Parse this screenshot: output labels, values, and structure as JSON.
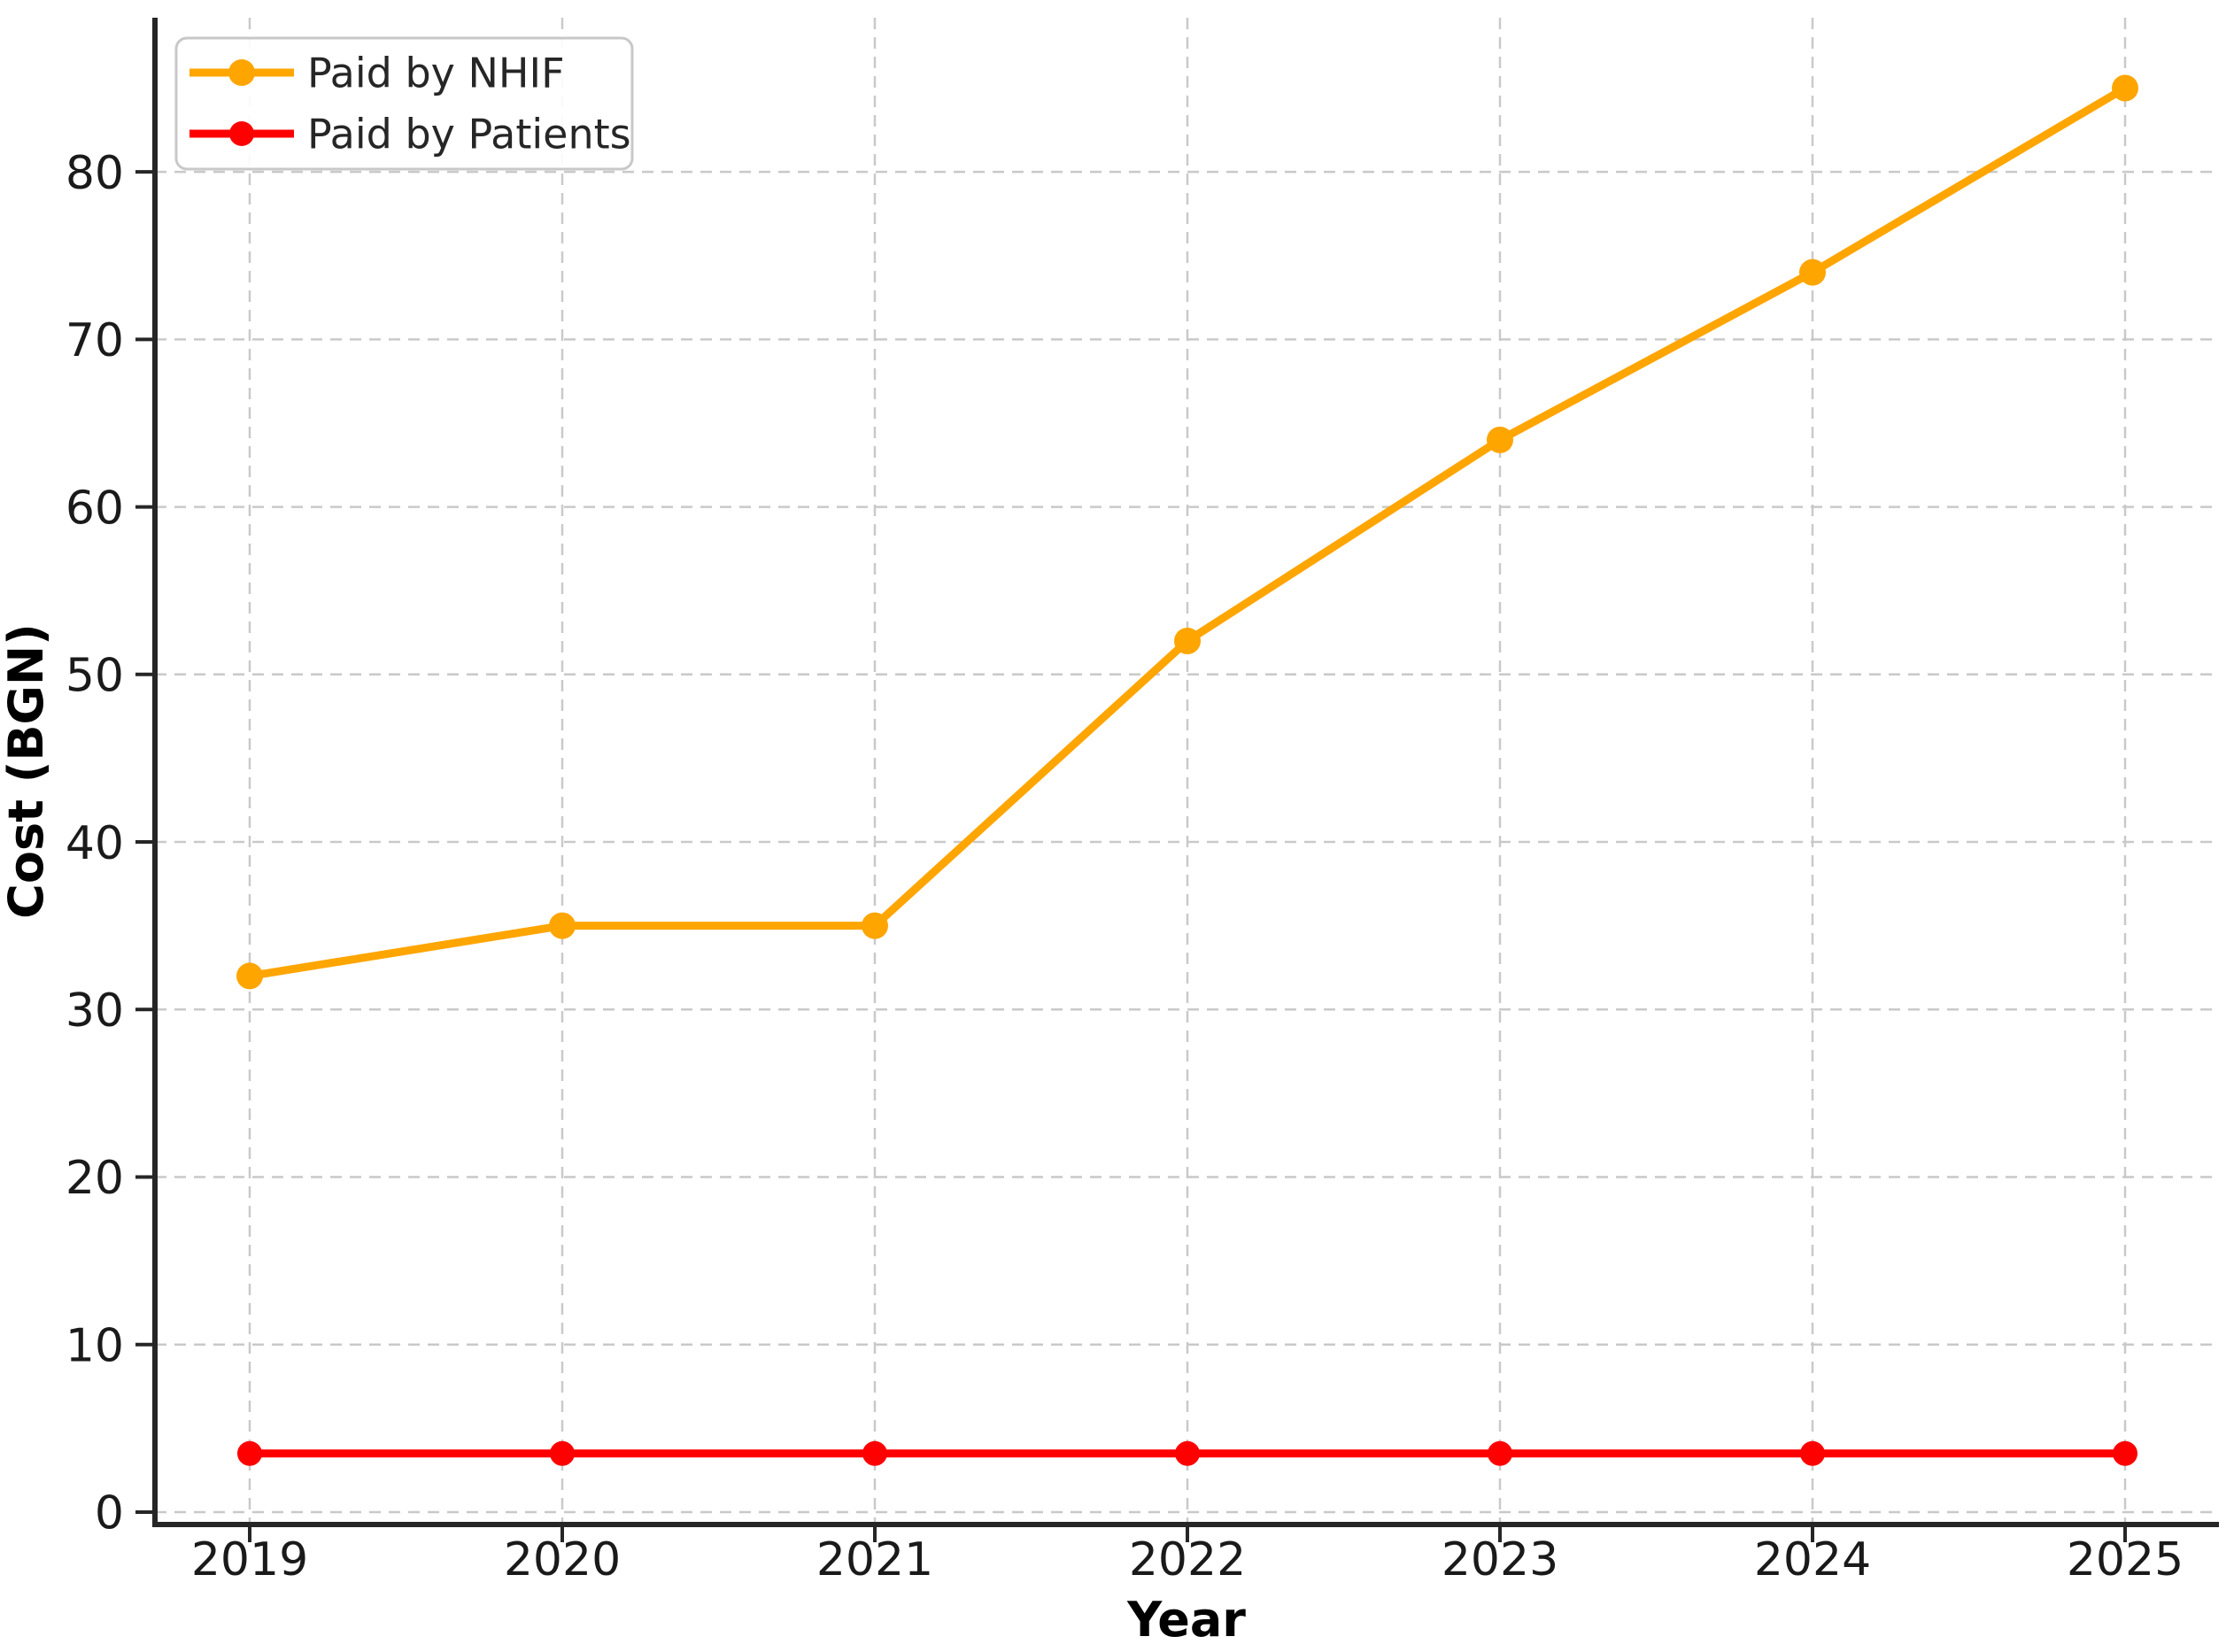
{
  "chart_data": {
    "type": "line",
    "title": "",
    "x": [
      2019,
      2020,
      2021,
      2022,
      2023,
      2024,
      2025
    ],
    "x_tick_labels": [
      "2019",
      "2020",
      "2021",
      "2022",
      "2023",
      "2024",
      "2025"
    ],
    "series": [
      {
        "name": "Paid by NHIF",
        "color": "#FFA500",
        "values": [
          32,
          35,
          35,
          52,
          64,
          74,
          85
        ],
        "marker": "o",
        "marker_radius": 15
      },
      {
        "name": "Paid by Patients",
        "color": "#FF0000",
        "values": [
          3.5,
          3.5,
          3.5,
          3.5,
          3.5,
          3.5,
          3.5
        ],
        "marker": "o",
        "marker_radius": 14
      }
    ],
    "xlabel": "Year",
    "ylabel": "Cost (BGN)",
    "ylim": [
      -0.74,
      89.2
    ],
    "y_ticks": [
      0,
      10,
      20,
      30,
      40,
      50,
      60,
      70,
      80
    ],
    "y_tick_labels": [
      "0",
      "10",
      "20",
      "30",
      "40",
      "50",
      "60",
      "70",
      "80"
    ],
    "grid": true,
    "grid_style": "dashed",
    "legend_position": "upper left",
    "colors": {
      "grid": "#C9C9C9",
      "axis": "#262626",
      "tick_text": "#1A1A1A",
      "legend_border": "#C8C8C8",
      "background": "#FFFFFF"
    }
  }
}
